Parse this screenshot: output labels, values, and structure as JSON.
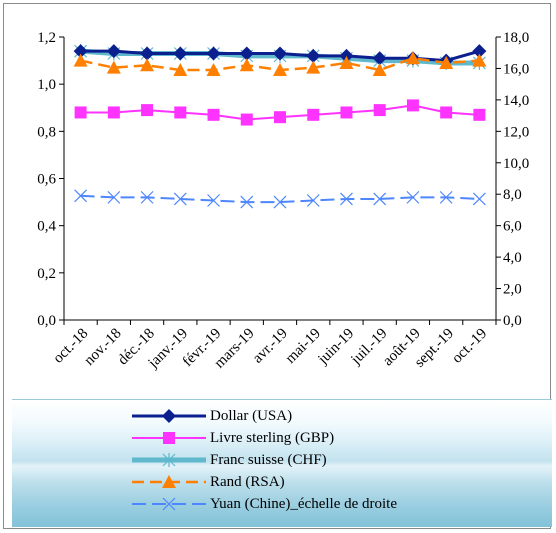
{
  "chart_data": {
    "type": "line",
    "categories": [
      "oct.-18",
      "nov.-18",
      "déc.-18",
      "janv.-19",
      "févr.-19",
      "mars-19",
      "avr.-19",
      "mai-19",
      "juin-19",
      "juil.-19",
      "août-19",
      "sept.-19",
      "oct.-19"
    ],
    "y_left": {
      "min": 0,
      "max": 1.2,
      "ticks": [
        "0,0",
        "0,2",
        "0,4",
        "0,6",
        "0,8",
        "1,0",
        "1,2"
      ]
    },
    "y_right": {
      "min": 0,
      "max": 18,
      "ticks": [
        "0,0",
        "2,0",
        "4,0",
        "6,0",
        "8,0",
        "10,0",
        "12,0",
        "14,0",
        "16,0",
        "18,0"
      ]
    },
    "grid": false,
    "legend_position": "bottom",
    "series": [
      {
        "name": "Dollar (USA)",
        "axis": "left",
        "color": "#0b1f8f",
        "marker": "diamond",
        "values": [
          1.14,
          1.14,
          1.13,
          1.13,
          1.13,
          1.13,
          1.13,
          1.12,
          1.12,
          1.11,
          1.11,
          1.1,
          1.14
        ]
      },
      {
        "name": "Livre sterling (GBP)",
        "axis": "left",
        "color": "#ff33ff",
        "marker": "square",
        "values": [
          0.88,
          0.88,
          0.89,
          0.88,
          0.87,
          0.85,
          0.86,
          0.87,
          0.88,
          0.89,
          0.91,
          0.88,
          0.87
        ]
      },
      {
        "name": "Franc suisse (CHF)",
        "axis": "left",
        "color": "#5fb8cc",
        "marker": "asterisk",
        "values": [
          1.14,
          1.13,
          1.13,
          1.13,
          1.13,
          1.12,
          1.12,
          1.12,
          1.11,
          1.1,
          1.1,
          1.09,
          1.09
        ]
      },
      {
        "name": "Rand (RSA)",
        "axis": "left",
        "color": "#ff8000",
        "marker": "triangle",
        "values": [
          1.1,
          1.07,
          1.08,
          1.06,
          1.06,
          1.08,
          1.06,
          1.07,
          1.09,
          1.06,
          1.11,
          1.09,
          1.1
        ]
      },
      {
        "name": "Yuan (Chine)_échelle de droite",
        "axis": "right",
        "color": "#4d86ff",
        "marker": "cross",
        "values": [
          7.9,
          7.8,
          7.8,
          7.7,
          7.6,
          7.5,
          7.5,
          7.6,
          7.7,
          7.7,
          7.8,
          7.8,
          7.7
        ]
      }
    ]
  }
}
